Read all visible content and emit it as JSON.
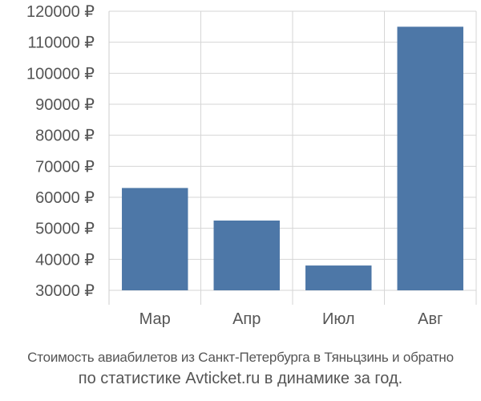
{
  "chart_data": {
    "type": "bar",
    "categories": [
      "Мар",
      "Апр",
      "Июл",
      "Авг"
    ],
    "values": [
      63000,
      52500,
      38000,
      115000
    ],
    "ylim": [
      30000,
      120000
    ],
    "yticks": [
      30000,
      40000,
      50000,
      60000,
      70000,
      80000,
      90000,
      100000,
      110000,
      120000
    ],
    "tick_suffix": " ₽",
    "grid": true,
    "bar_color": "#4d77a7",
    "grid_color": "#d6d6d6",
    "label_color": "#555555"
  },
  "caption": {
    "line1": "Стоимость авиабилетов из Санкт-Петербурга в Тяньцзинь и обратно",
    "line2": "по статистике Avticket.ru в динамике за год."
  }
}
